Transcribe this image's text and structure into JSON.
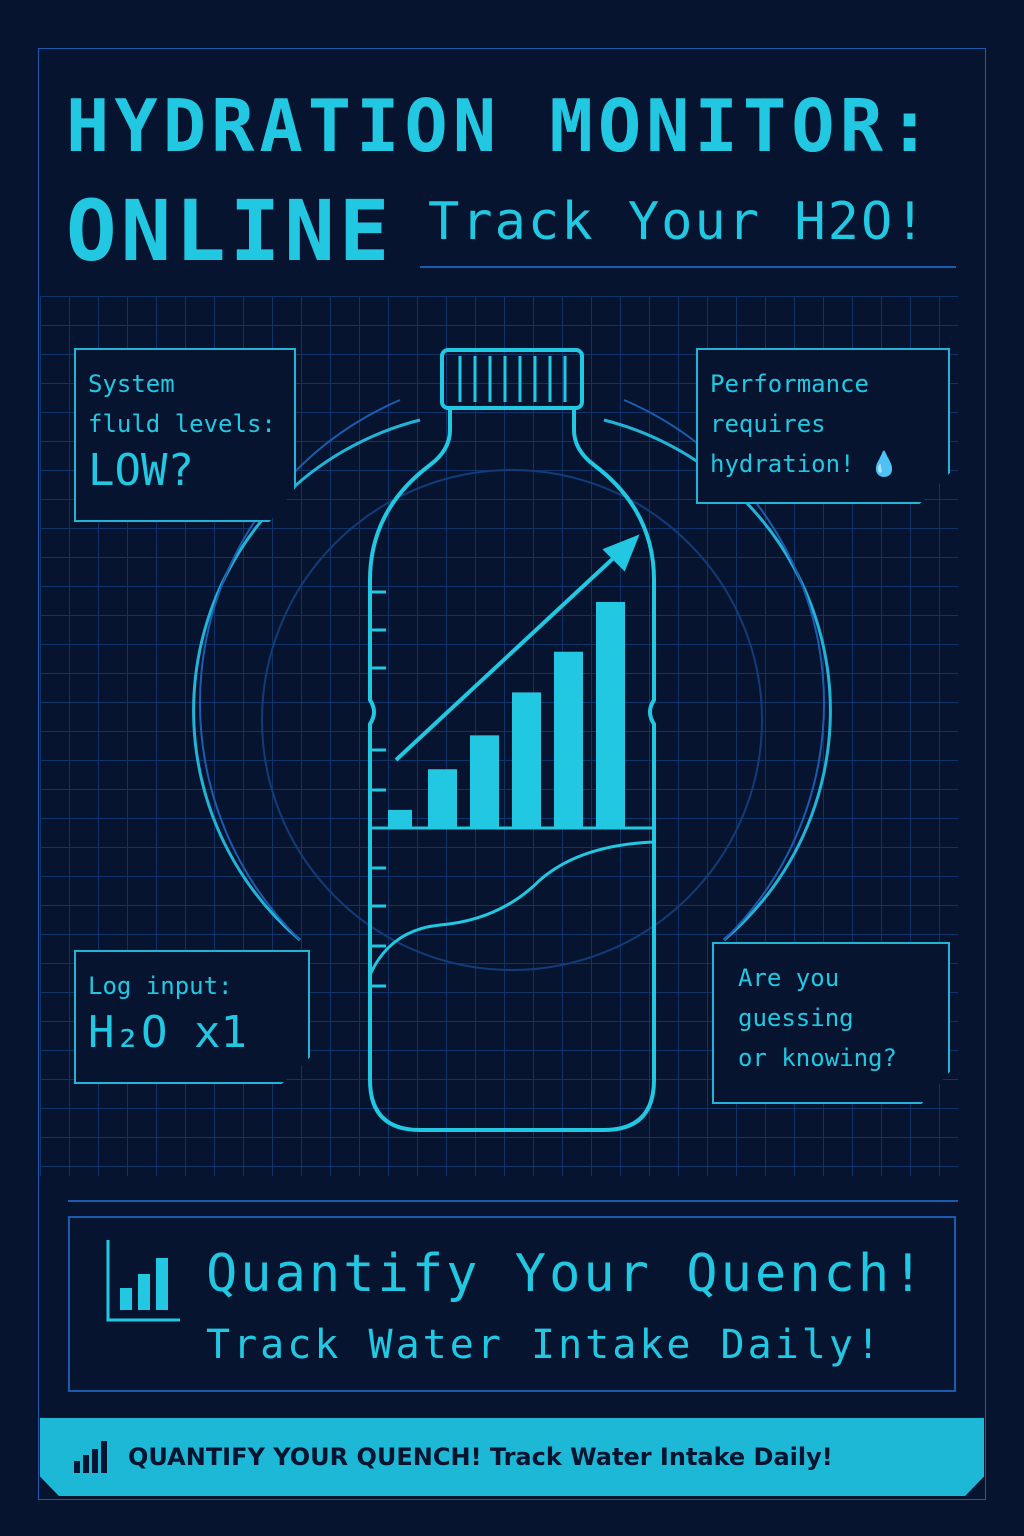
{
  "header": {
    "title_line1": "HYDRATION MONITOR:",
    "title_line2": "ONLINE",
    "subtitle": "Track Your H2O!"
  },
  "panels": {
    "top_left": {
      "line1": "System",
      "line2": "fluld levels:",
      "value": "LOW?"
    },
    "top_right": {
      "line1": "Performance",
      "line2": "requires",
      "line3": "hydration!",
      "icon": "water-drop-icon"
    },
    "bottom_left": {
      "label": "Log input:",
      "value": "H₂O x1"
    },
    "bottom_right": {
      "line1": "Are you",
      "line2": "guessing",
      "line3": "or knowing?"
    }
  },
  "bottle_chart": {
    "bar_levels": [
      0.08,
      0.26,
      0.41,
      0.6,
      0.78,
      1.0
    ],
    "trend": "up"
  },
  "banner": {
    "headline": "Quantify Your Quench!",
    "tagline": "Track Water Intake Daily!",
    "icon": "bar-chart-icon"
  },
  "footer": {
    "text": "QUANTIFY YOUR QUENCH! Track Water Intake Daily!",
    "icon": "bar-chart-icon"
  },
  "colors": {
    "background": "#061430",
    "accent": "#22c8e2",
    "line": "#1c5cb0"
  }
}
